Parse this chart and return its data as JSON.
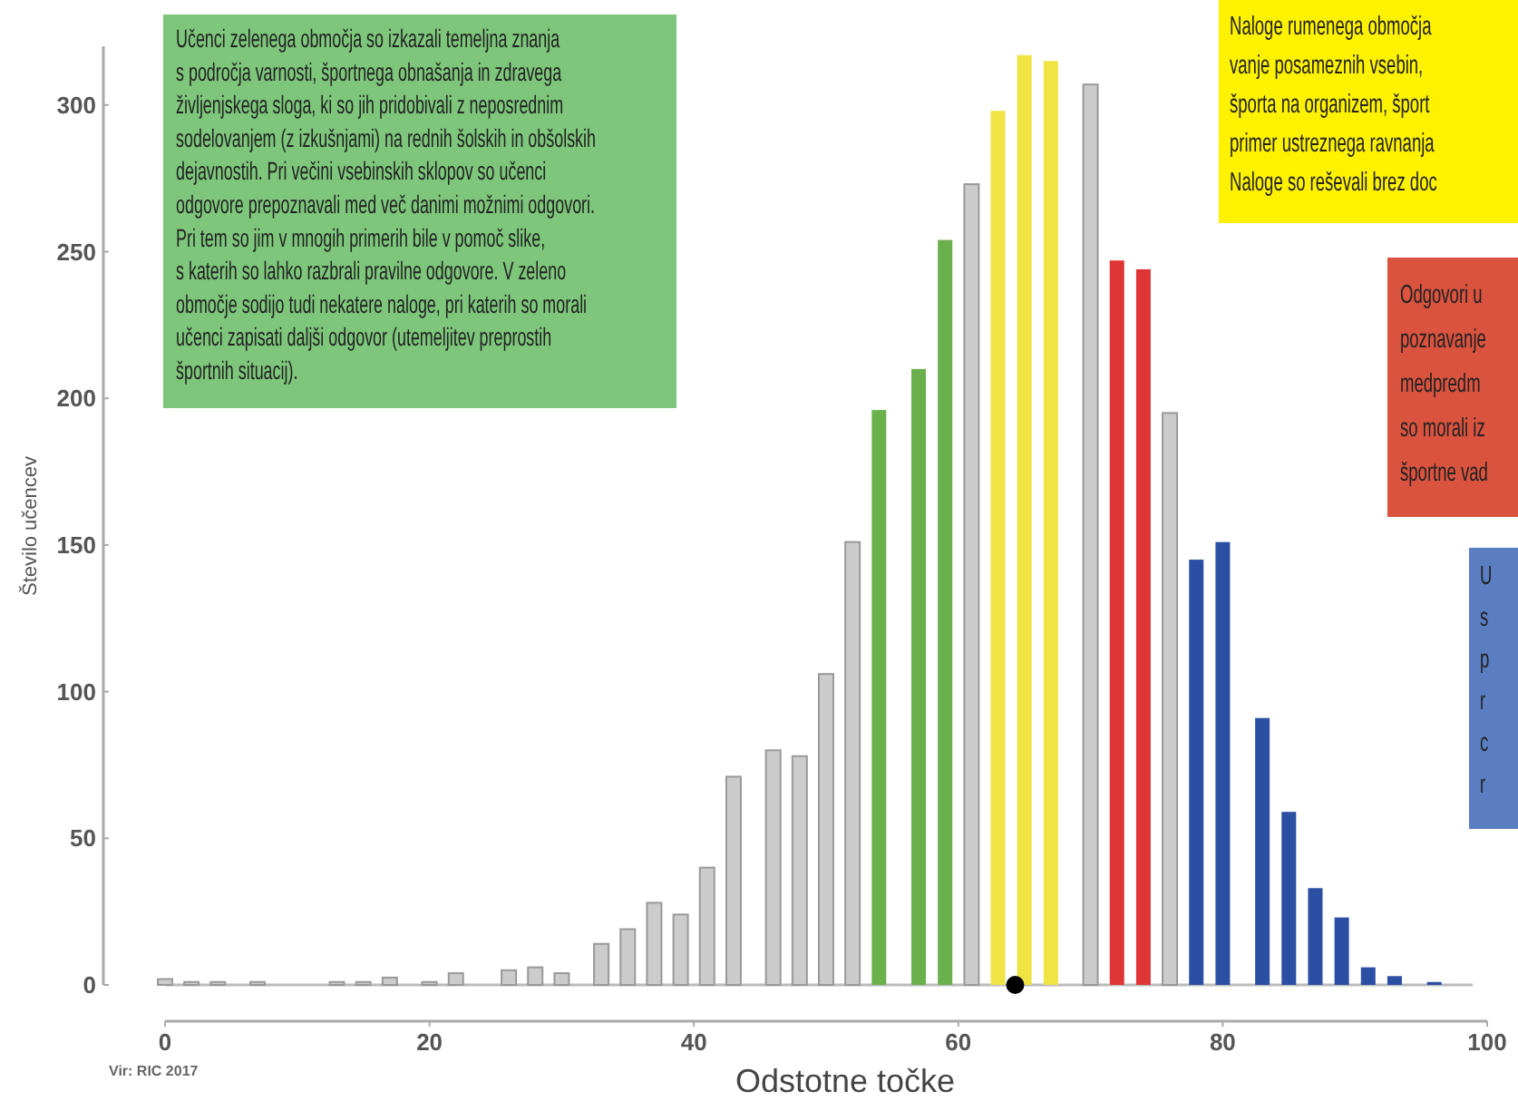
{
  "chart_data": {
    "type": "bar",
    "xlabel": "Odstotne točke",
    "ylabel": "Število učencev",
    "x": [
      0,
      2,
      4,
      7,
      13,
      15,
      17,
      20,
      22,
      26,
      28,
      30,
      33,
      35,
      37,
      39,
      41,
      43,
      46,
      48,
      50,
      52,
      54,
      57,
      59,
      61,
      63,
      65,
      67,
      70,
      72,
      74,
      76,
      78,
      80,
      83,
      85,
      87,
      89,
      91,
      93,
      96
    ],
    "series": [
      {
        "values": [
          2,
          1,
          1,
          1,
          1,
          1,
          2.5,
          1,
          4,
          5,
          6,
          4,
          14,
          19,
          28,
          24,
          40,
          71,
          80,
          78,
          106,
          151,
          196,
          210,
          254,
          273,
          298,
          317,
          315,
          307,
          247,
          244,
          195,
          145,
          151,
          91,
          59,
          33,
          23,
          6,
          3,
          1
        ],
        "colors": [
          "#cccccc",
          "#cccccc",
          "#cccccc",
          "#cccccc",
          "#cccccc",
          "#cccccc",
          "#cccccc",
          "#cccccc",
          "#cccccc",
          "#cccccc",
          "#cccccc",
          "#cccccc",
          "#cccccc",
          "#cccccc",
          "#cccccc",
          "#cccccc",
          "#cccccc",
          "#cccccc",
          "#cccccc",
          "#cccccc",
          "#cccccc",
          "#cccccc",
          "#6ab04c",
          "#6ab04c",
          "#6ab04c",
          "#cccccc",
          "#f0e445",
          "#f0e445",
          "#f0e445",
          "#cccccc",
          "#e03535",
          "#e03535",
          "#cccccc",
          "#2b4fa3",
          "#2b4fa3",
          "#2b4fa3",
          "#2b4fa3",
          "#2b4fa3",
          "#2b4fa3",
          "#2b4fa3",
          "#2b4fa3",
          "#2b4fa3"
        ]
      },
      {
        "type": "scatter",
        "x": [
          64.3
        ],
        "values": [
          0
        ],
        "color": "#000000",
        "marker": "circle"
      }
    ],
    "xlim": [
      0,
      100
    ],
    "xticks": [
      0,
      20,
      40,
      60,
      80,
      100
    ],
    "ylim": [
      0,
      320
    ],
    "yticks": [
      0,
      50,
      100,
      150,
      200,
      250,
      300
    ],
    "grid": false,
    "annotations": [
      "Učenci zelenega območja so izkazali temeljna znanja\ns področja varnosti, športnega obnašanja in zdravega\nživljenjskega sloga, ki so jih pridobivali z neposrednim\nsodelovanjem (z izkušnjami) na rednih šolskih in obšolskih\ndejavnostih. Pri večini vsebinskih sklopov so učenci\nodgovore prepoznavali med več danimi možnimi odgovori.\nPri tem so jim v mnogih primerih bile v pomoč slike,\ns katerih so lahko razbrali pravilne odgovore. V zeleno\nobmočje sodijo tudi nekatere naloge, pri katerih so morali\nučenci zapisati daljši odgovor (utemeljitev preprostih\nšportnih situacij).",
      "Naloge rumenega območja\nvanje posameznih vsebin,\nšporta na organizem, šport\nprimer ustreznega ravnanja\nNaloge so reševali brez doc",
      "Odgovori u\npoznavanje\nmedpredm\nso morali iz\nšportne vad",
      "U\ns\np\nr\nc\nr",
      "Vir: RIC 2017"
    ]
  }
}
